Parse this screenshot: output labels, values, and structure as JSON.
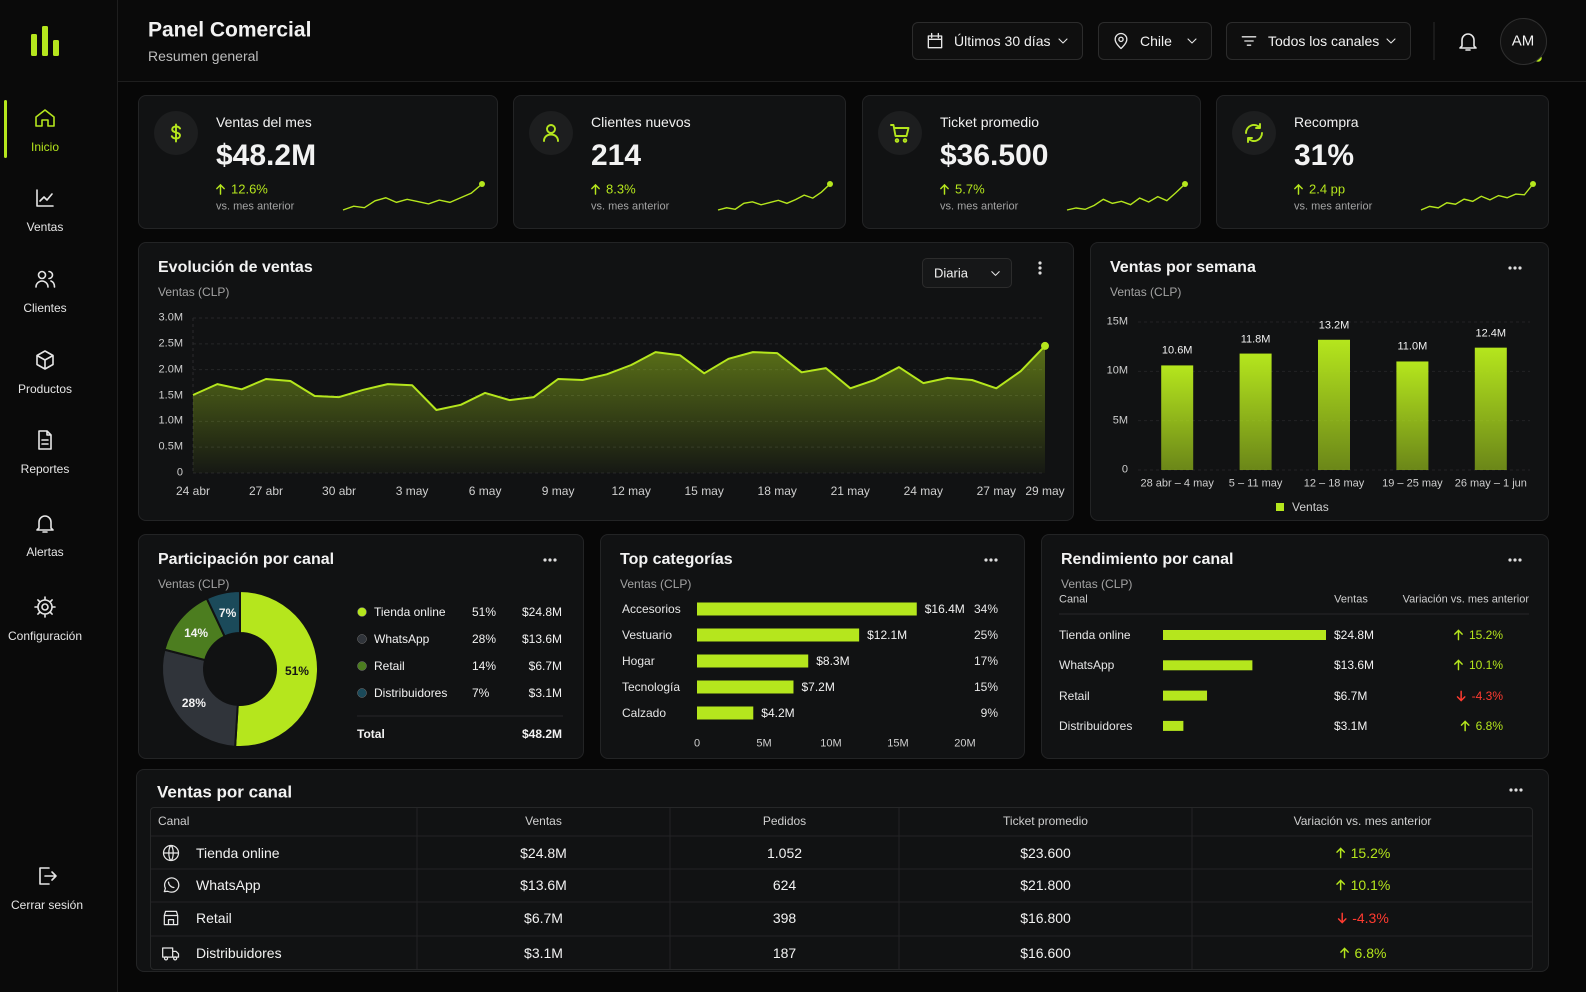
{
  "header": {
    "title": "Panel Comercial",
    "subtitle": "Resumen general",
    "filters": [
      "Últimos 30 días",
      "Chile",
      "Todos los canales"
    ],
    "avatar": "AM"
  },
  "sidebar": {
    "items": [
      "Inicio",
      "Ventas",
      "Clientes",
      "Productos",
      "Reportes",
      "Alertas",
      "Configuración"
    ],
    "logout": "Cerrar sesión"
  },
  "kpis": [
    {
      "label": "Ventas del mes",
      "value": "$48.2M",
      "change": "12.6%",
      "note": "vs. mes anterior",
      "trend": [
        2,
        2.5,
        2.3,
        3.2,
        3.6,
        3,
        3.4,
        3.1,
        2.8,
        3.3,
        3,
        3.6,
        4.2,
        5.4
      ]
    },
    {
      "label": "Clientes nuevos",
      "value": "214",
      "change": "8.3%",
      "note": "vs. mes anterior",
      "trend": [
        1.5,
        1.8,
        1.6,
        2.4,
        2.6,
        2.2,
        2.5,
        2.8,
        2.4,
        2.9,
        3.5,
        3.1,
        3.9,
        5
      ]
    },
    {
      "label": "Ticket promedio",
      "value": "$36.500",
      "change": "5.7%",
      "note": "vs. mes anterior",
      "trend": [
        1.6,
        1.9,
        1.7,
        2.3,
        3.2,
        2.6,
        2.9,
        2.4,
        3.4,
        2.8,
        3.6,
        3,
        4.2,
        5.5
      ]
    },
    {
      "label": "Recompra",
      "value": "31%",
      "change": "2.4 pp",
      "note": "vs. mes anterior",
      "trend": [
        1.4,
        1.9,
        1.7,
        2.4,
        2.2,
        2.9,
        2.6,
        3.3,
        2.8,
        3.4,
        3.1,
        3.6,
        3.5,
        5
      ]
    }
  ],
  "chart_data": [
    {
      "type": "line",
      "title": "Evolución de ventas",
      "subtitle": "Ventas (CLP)",
      "control": "Diaria",
      "categories": [
        "24 abr",
        null,
        null,
        "27 abr",
        null,
        null,
        "30 abr",
        null,
        null,
        "3 may",
        null,
        null,
        "6 may",
        null,
        null,
        "9 may",
        null,
        null,
        "12 may",
        null,
        null,
        "15 may",
        null,
        null,
        "18 may",
        null,
        null,
        "21 may",
        null,
        null,
        "24 may",
        null,
        null,
        "27 may",
        null,
        "29 may"
      ],
      "values": [
        1510000,
        1720000,
        1620000,
        1820000,
        1780000,
        1490000,
        1470000,
        1610000,
        1720000,
        1700000,
        1220000,
        1320000,
        1550000,
        1410000,
        1470000,
        1820000,
        1800000,
        1910000,
        2090000,
        2340000,
        2280000,
        1930000,
        2210000,
        2340000,
        2320000,
        1950000,
        2030000,
        1640000,
        1800000,
        2050000,
        1740000,
        1840000,
        1800000,
        1640000,
        1970000,
        2460000
      ],
      "color": "#b5e61d",
      "ylim": [
        0,
        3000000
      ],
      "yticks": [
        0,
        {
          "value": 500000,
          "label": "0.5M"
        },
        {
          "value": 1000000,
          "label": "1.0M"
        },
        {
          "value": 1500000,
          "label": "1.5M"
        },
        {
          "value": 2000000,
          "label": "2.0M"
        },
        {
          "value": 2500000,
          "label": "2.5M"
        },
        {
          "value": 3000000,
          "label": "3.0M"
        }
      ],
      "grid": true
    },
    {
      "type": "bar",
      "title": "Ventas por semana",
      "subtitle": "Ventas (CLP)",
      "categories": [
        "28 abr – 4 may",
        "5 – 11 may",
        "12 – 18 may",
        "19 – 25 may",
        "26 may – 1 jun"
      ],
      "series": [
        {
          "name": "Ventas",
          "color": "#b5e61d",
          "values": [
            10600000,
            11800000,
            13200000,
            11000000,
            12400000
          ],
          "value_labels": [
            "10.6M",
            "11.8M",
            "13.2M",
            "11.0M",
            "12.4M"
          ]
        }
      ],
      "ylim": [
        0,
        15000000
      ],
      "yticks": [
        0,
        {
          "value": 5000000,
          "label": "5M"
        },
        {
          "value": 10000000,
          "label": "10M"
        },
        {
          "value": 15000000,
          "label": "15M"
        }
      ],
      "grid": true
    },
    {
      "type": "pie",
      "title": "Participación por canal",
      "subtitle": "Ventas (CLP)",
      "categories": [
        "Tienda online",
        "WhatsApp",
        "Retail",
        "Distribuidores"
      ],
      "values": [
        51,
        28,
        14,
        7
      ],
      "value_labels": [
        "51%",
        "28%",
        "14%",
        "7%"
      ],
      "colors": [
        "#b5e61d",
        "#30343a",
        "#4c7d1f",
        "#1b4a5a"
      ],
      "amounts": [
        "$24.8M",
        "$13.6M",
        "$6.7M",
        "$3.1M"
      ],
      "total_label": "Total",
      "total": "$48.2M"
    },
    {
      "type": "bar",
      "orientation": "horizontal",
      "title": "Top categorías",
      "subtitle": "Ventas (CLP)",
      "categories": [
        "Accesorios",
        "Vestuario",
        "Hogar",
        "Tecnología",
        "Calzado"
      ],
      "values": [
        16400000,
        12100000,
        8300000,
        7200000,
        4200000
      ],
      "value_labels": [
        "$16.4M",
        "$12.1M",
        "$8.3M",
        "$7.2M",
        "$4.2M"
      ],
      "shares": [
        "34%",
        "25%",
        "17%",
        "15%",
        "9%"
      ],
      "color": "#b5e61d",
      "xlim": [
        0,
        20000000
      ],
      "xticks": [
        0,
        {
          "value": 5000000,
          "label": "5M"
        },
        {
          "value": 10000000,
          "label": "10M"
        },
        {
          "value": 15000000,
          "label": "15M"
        },
        {
          "value": 20000000,
          "label": "20M"
        }
      ]
    },
    {
      "type": "bar",
      "orientation": "horizontal",
      "title": "Rendimiento por canal",
      "subtitle": "Ventas (CLP)",
      "columns": [
        "Canal",
        "Ventas",
        "Variación vs. mes anterior"
      ],
      "categories": [
        "Tienda online",
        "WhatsApp",
        "Retail",
        "Distribuidores"
      ],
      "values": [
        24800000,
        13600000,
        6700000,
        3100000
      ],
      "value_labels": [
        "$24.8M",
        "$13.6M",
        "$6.7M",
        "$3.1M"
      ],
      "changes": [
        "15.2%",
        "10.1%",
        "-4.3%",
        "6.8%"
      ],
      "color": "#b5e61d"
    }
  ],
  "table": {
    "title": "Ventas por canal",
    "columns": [
      "Canal",
      "Ventas",
      "Pedidos",
      "Ticket promedio",
      "Variación vs. mes anterior"
    ],
    "rows": [
      [
        "Tienda online",
        "$24.8M",
        "1.052",
        "$23.600",
        "15.2%"
      ],
      [
        "WhatsApp",
        "$13.6M",
        "624",
        "$21.800",
        "10.1%"
      ],
      [
        "Retail",
        "$6.7M",
        "398",
        "$16.800",
        "-4.3%"
      ],
      [
        "Distribuidores",
        "$3.1M",
        "187",
        "$16.600",
        "6.8%"
      ]
    ]
  }
}
